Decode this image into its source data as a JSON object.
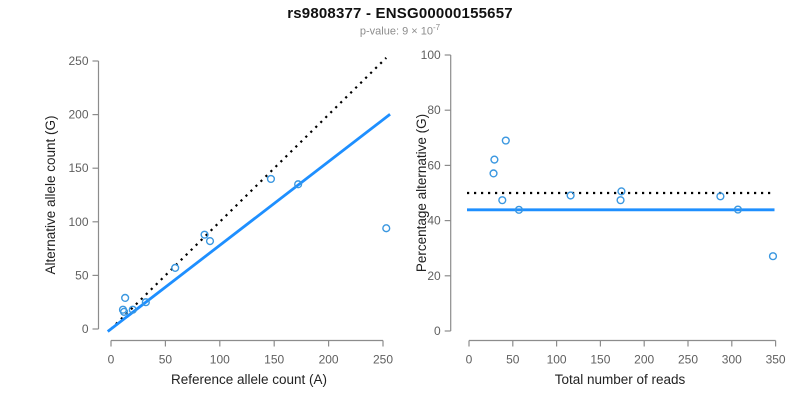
{
  "header": {
    "title": "rs9808377 - ENSG00000155657",
    "pvalue_label": "p-value: 9 × 10",
    "pvalue_exponent": "-7"
  },
  "colors": {
    "fit_line_blue": "#1E8FFF",
    "point_blue": "#3A97E0",
    "dotted_line_black": "#000000",
    "axis_gray": "#8C8C8C",
    "tick_text_gray": "#5F5F5F",
    "axis_title_color": "#222222",
    "subtitle_gray": "#8C8C8C"
  },
  "chart_data": [
    {
      "type": "scatter",
      "panel": "left",
      "xlabel": "Reference allele count (A)",
      "ylabel": "Alternative allele count (G)",
      "xlim": [
        0,
        250
      ],
      "ylim": [
        0,
        250
      ],
      "x_ticks": [
        0,
        50,
        100,
        150,
        200,
        250
      ],
      "y_ticks": [
        0,
        50,
        100,
        150,
        200,
        250
      ],
      "grid": false,
      "points": [
        [
          11,
          18
        ],
        [
          12,
          16
        ],
        [
          13,
          29
        ],
        [
          20,
          18
        ],
        [
          32,
          25
        ],
        [
          59,
          57
        ],
        [
          86,
          88
        ],
        [
          91,
          82
        ],
        [
          147,
          140
        ],
        [
          172,
          135
        ],
        [
          253,
          94
        ]
      ],
      "identity_line": {
        "style": "dotted",
        "slope": 1,
        "intercept": 0,
        "x_end": 253
      },
      "fit_line": {
        "style": "solid",
        "slope": 0.781,
        "intercept": 0
      }
    },
    {
      "type": "scatter",
      "panel": "right",
      "xlabel": "Total number of reads",
      "ylabel": "Percentage alternative (G)",
      "xlim": [
        0,
        350
      ],
      "ylim": [
        0,
        100
      ],
      "x_ticks": [
        0,
        50,
        100,
        150,
        200,
        250,
        300,
        350
      ],
      "y_ticks": [
        0,
        20,
        40,
        60,
        80,
        100
      ],
      "grid": false,
      "points": [
        [
          29,
          62.1
        ],
        [
          28,
          57.1
        ],
        [
          42,
          69.0
        ],
        [
          38,
          47.4
        ],
        [
          57,
          43.9
        ],
        [
          116,
          49.1
        ],
        [
          174,
          50.6
        ],
        [
          173,
          47.4
        ],
        [
          287,
          48.8
        ],
        [
          307,
          44.0
        ],
        [
          347,
          27.1
        ]
      ],
      "reference_line": {
        "style": "dotted",
        "y": 50
      },
      "fit_line": {
        "style": "solid",
        "y": 43.9
      }
    }
  ]
}
